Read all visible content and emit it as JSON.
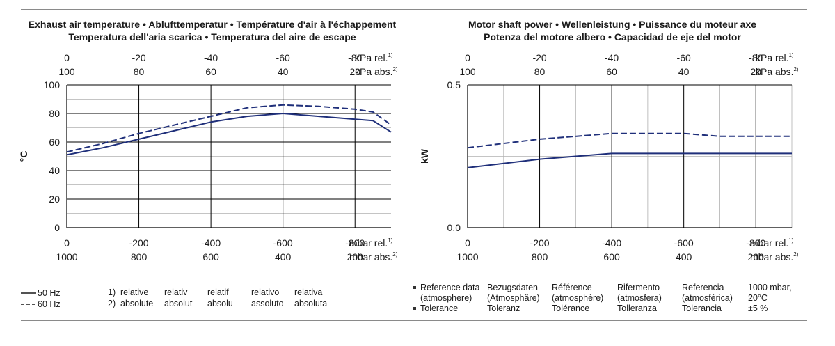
{
  "chart_data": [
    {
      "type": "line",
      "title": [
        "Exhaust air temperature  •  Ablufttemperatur  •  Température d'air à l'échappement",
        "Temperatura dell'aria scarica  •  Temperatura del aire de escape"
      ],
      "ylabel": "°C",
      "ylim": [
        0,
        100
      ],
      "yticks": [
        "0",
        "20",
        "40",
        "60",
        "80",
        "100"
      ],
      "x_axis_unit": "mbar",
      "xlim": [
        0,
        -900
      ],
      "top_axis_rel": {
        "ticks": [
          "0",
          "-20",
          "-40",
          "-60",
          "-80"
        ],
        "unit": "kPa rel.",
        "sup": "1)"
      },
      "top_axis_abs": {
        "ticks": [
          "100",
          "80",
          "60",
          "40",
          "20"
        ],
        "unit": "kPa abs.",
        "sup": "2)"
      },
      "bottom_axis_rel": {
        "ticks": [
          "0",
          "-200",
          "-400",
          "-600",
          "-800"
        ],
        "unit": "mbar rel.",
        "sup": "1)"
      },
      "bottom_axis_abs": {
        "ticks": [
          "1000",
          "800",
          "600",
          "400",
          "200"
        ],
        "unit": "mbar abs.",
        "sup": "2)"
      },
      "grid": true,
      "series": [
        {
          "name": "50 Hz",
          "style": "solid",
          "x": [
            0,
            -100,
            -200,
            -300,
            -400,
            -500,
            -600,
            -700,
            -800,
            -850,
            -900
          ],
          "y": [
            51,
            56,
            62,
            68,
            74,
            78,
            80,
            78,
            76,
            75,
            67
          ]
        },
        {
          "name": "60 Hz",
          "style": "dashed",
          "x": [
            0,
            -100,
            -200,
            -300,
            -400,
            -500,
            -600,
            -700,
            -800,
            -850,
            -900
          ],
          "y": [
            53,
            59,
            66,
            72,
            78,
            84,
            86,
            85,
            83,
            81,
            72
          ]
        }
      ]
    },
    {
      "type": "line",
      "title": [
        "Motor shaft power  •  Wellenleistung  •  Puissance du moteur axe",
        "Potenza del motore albero  •  Capacidad de eje del motor"
      ],
      "ylabel": "kW",
      "ylim": [
        0,
        0.5
      ],
      "yticks": [
        "0.0",
        "0.5"
      ],
      "x_axis_unit": "mbar",
      "xlim": [
        0,
        -900
      ],
      "top_axis_rel": {
        "ticks": [
          "0",
          "-20",
          "-40",
          "-60",
          "-80"
        ],
        "unit": "kPa rel.",
        "sup": "1)"
      },
      "top_axis_abs": {
        "ticks": [
          "100",
          "80",
          "60",
          "40",
          "20"
        ],
        "unit": "kPa abs.",
        "sup": "2)"
      },
      "bottom_axis_rel": {
        "ticks": [
          "0",
          "-200",
          "-400",
          "-600",
          "-800"
        ],
        "unit": "mbar rel.",
        "sup": "1)"
      },
      "bottom_axis_abs": {
        "ticks": [
          "1000",
          "800",
          "600",
          "400",
          "200"
        ],
        "unit": "mbar abs.",
        "sup": "2)"
      },
      "grid": true,
      "series": [
        {
          "name": "50 Hz",
          "style": "solid",
          "x": [
            0,
            -200,
            -400,
            -600,
            -800,
            -900
          ],
          "y": [
            0.21,
            0.24,
            0.26,
            0.26,
            0.26,
            0.26
          ]
        },
        {
          "name": "60 Hz",
          "style": "dashed",
          "x": [
            0,
            -200,
            -400,
            -600,
            -700,
            -800,
            -900
          ],
          "y": [
            0.28,
            0.31,
            0.33,
            0.33,
            0.32,
            0.32,
            0.32
          ]
        }
      ]
    }
  ],
  "legend": [
    {
      "label": "50 Hz",
      "style": "solid"
    },
    {
      "label": "60 Hz",
      "style": "dashed"
    }
  ],
  "footnotes": [
    {
      "num": "1)",
      "terms": [
        "relative",
        "relativ",
        "relatif",
        "relativo",
        "relativa"
      ]
    },
    {
      "num": "2)",
      "terms": [
        "absolute",
        "absolut",
        "absolu",
        "assoluto",
        "absoluta"
      ]
    }
  ],
  "reference": {
    "columns": [
      {
        "line1": "Reference data",
        "line2": "(atmosphere)",
        "line3": "Tolerance"
      },
      {
        "line1": "Bezugsdaten",
        "line2": "(Atmosphäre)",
        "line3": "Toleranz"
      },
      {
        "line1": "Référence",
        "line2": "(atmosphère)",
        "line3": "Tolérance"
      },
      {
        "line1": "Rifermento",
        "line2": "(atmosfera)",
        "line3": "Tolleranza"
      },
      {
        "line1": "Referencia",
        "line2": "(atmosférica)",
        "line3": "Tolerancia"
      },
      {
        "line1": "1000 mbar,",
        "line2": "20°C",
        "line3": "±5 %"
      }
    ]
  },
  "colors": {
    "line": "#1f2f7a",
    "grid_major": "#000000",
    "grid_minor": "#b0b0b0",
    "text": "#1a1a1a"
  }
}
